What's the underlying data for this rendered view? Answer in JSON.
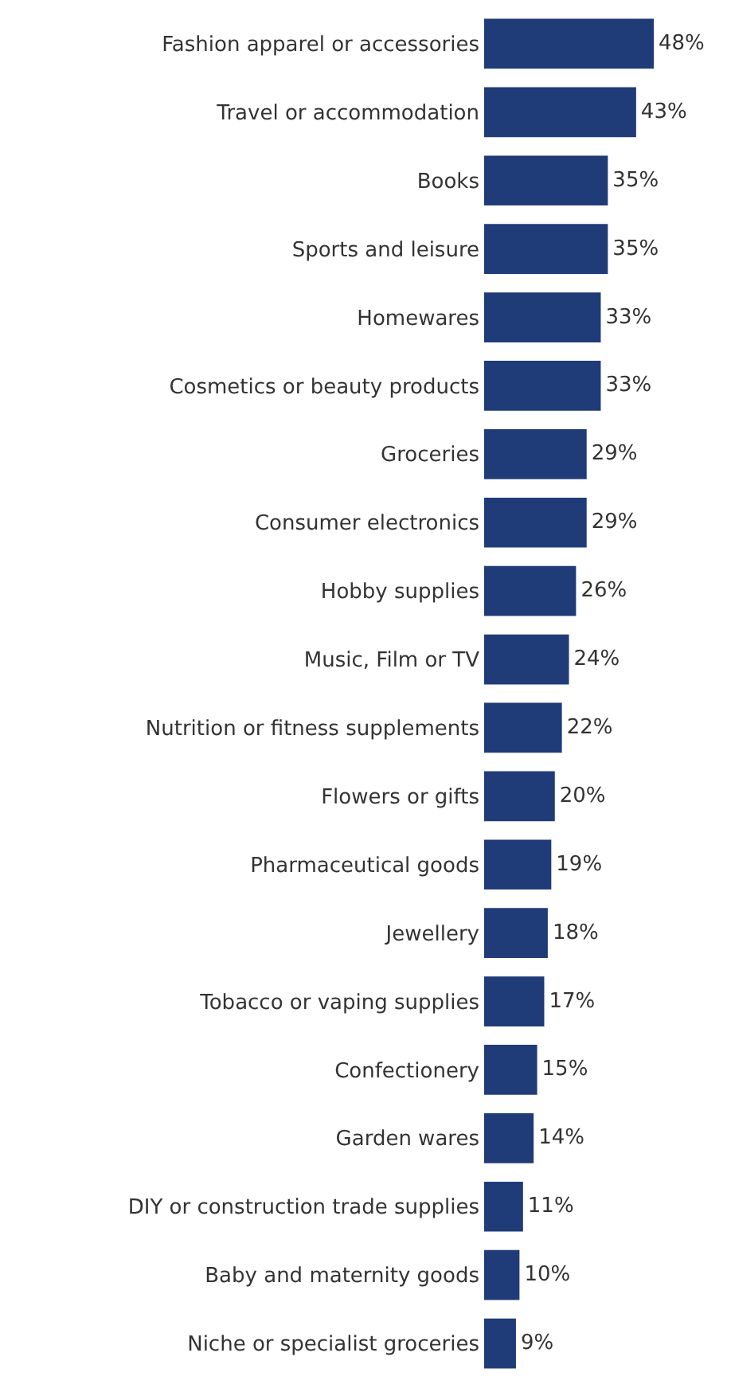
{
  "chart_data": {
    "type": "bar",
    "orientation": "horizontal",
    "tick_labels": "y",
    "categories": [
      "Fashion apparel or accessories",
      "Travel or accommodation",
      "Books",
      "Sports and leisure",
      "Homewares",
      "Cosmetics or beauty products",
      "Groceries",
      "Consumer electronics",
      "Hobby supplies",
      "Music, Film or TV",
      "Nutrition or fitness supplements",
      "Flowers or gifts",
      "Pharmaceutical goods",
      "Jewellery",
      "Tobacco or vaping supplies",
      "Confectionery",
      "Garden wares",
      "DIY or construction trade supplies",
      "Baby and maternity goods",
      "Niche or specialist groceries"
    ],
    "values": [
      48,
      43,
      35,
      35,
      33,
      33,
      29,
      29,
      26,
      24,
      22,
      20,
      19,
      18,
      17,
      15,
      14,
      11,
      10,
      9
    ],
    "value_labels": [
      "48%",
      "43%",
      "35%",
      "35%",
      "33%",
      "33%",
      "29%",
      "29%",
      "26%",
      "24%",
      "22%",
      "20%",
      "19%",
      "18%",
      "17%",
      "15%",
      "14%",
      "11%",
      "10%",
      "9%"
    ],
    "color": "#1f3b78"
  }
}
